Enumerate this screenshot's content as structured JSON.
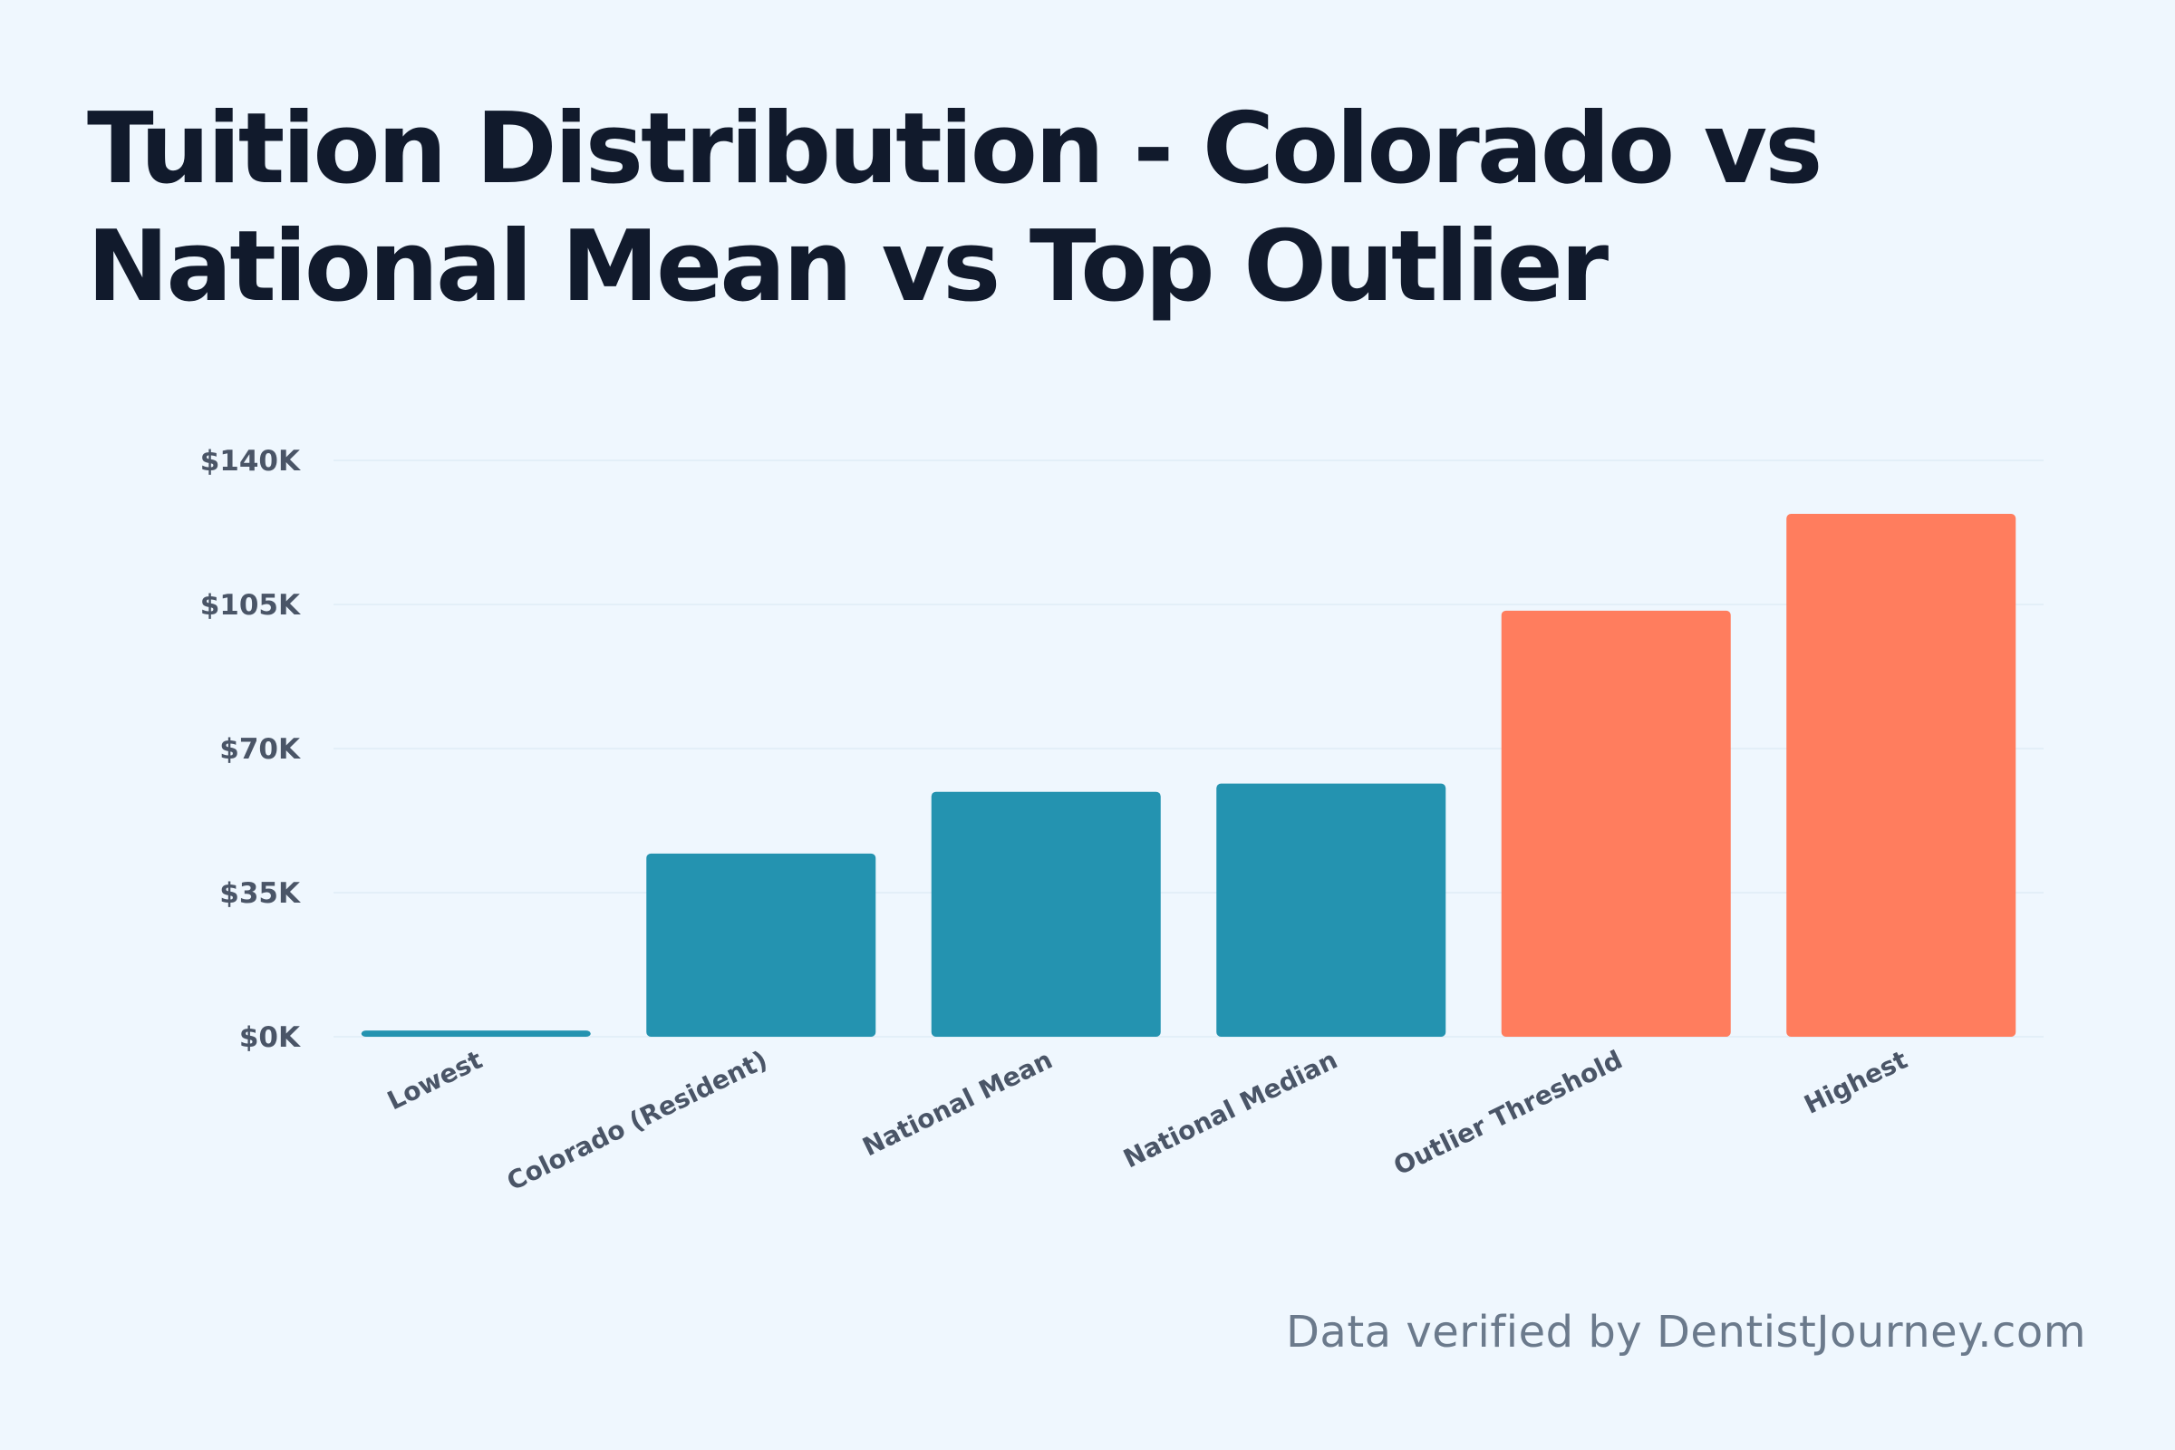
{
  "chart_data": {
    "type": "bar",
    "title": "Tuition Distribution - Colorado vs National Mean vs Top Outlier",
    "categories": [
      "Lowest",
      "Colorado (Resident)",
      "National Mean",
      "National Median",
      "Outlier Threshold",
      "Highest"
    ],
    "values": [
      1500,
      44500,
      59500,
      61500,
      103500,
      127000
    ],
    "bar_colors": [
      "#2493b0",
      "#2493b0",
      "#2493b0",
      "#2493b0",
      "#ff7d5e",
      "#ff7d5e"
    ],
    "y_ticks": [
      0,
      35000,
      70000,
      105000,
      140000
    ],
    "y_tick_labels": [
      "$0K",
      "$35K",
      "$70K",
      "$105K",
      "$140K"
    ],
    "ylim": [
      0,
      140000
    ],
    "xlabel": "",
    "ylabel": "",
    "grid": true,
    "legend": "none"
  },
  "footer": {
    "source": "Data verified by DentistJourney.com"
  },
  "colors": {
    "background": "#eff7fe",
    "title": "#111a2c",
    "axis_text": "#4a5567",
    "gridline": "#e3eff8"
  }
}
